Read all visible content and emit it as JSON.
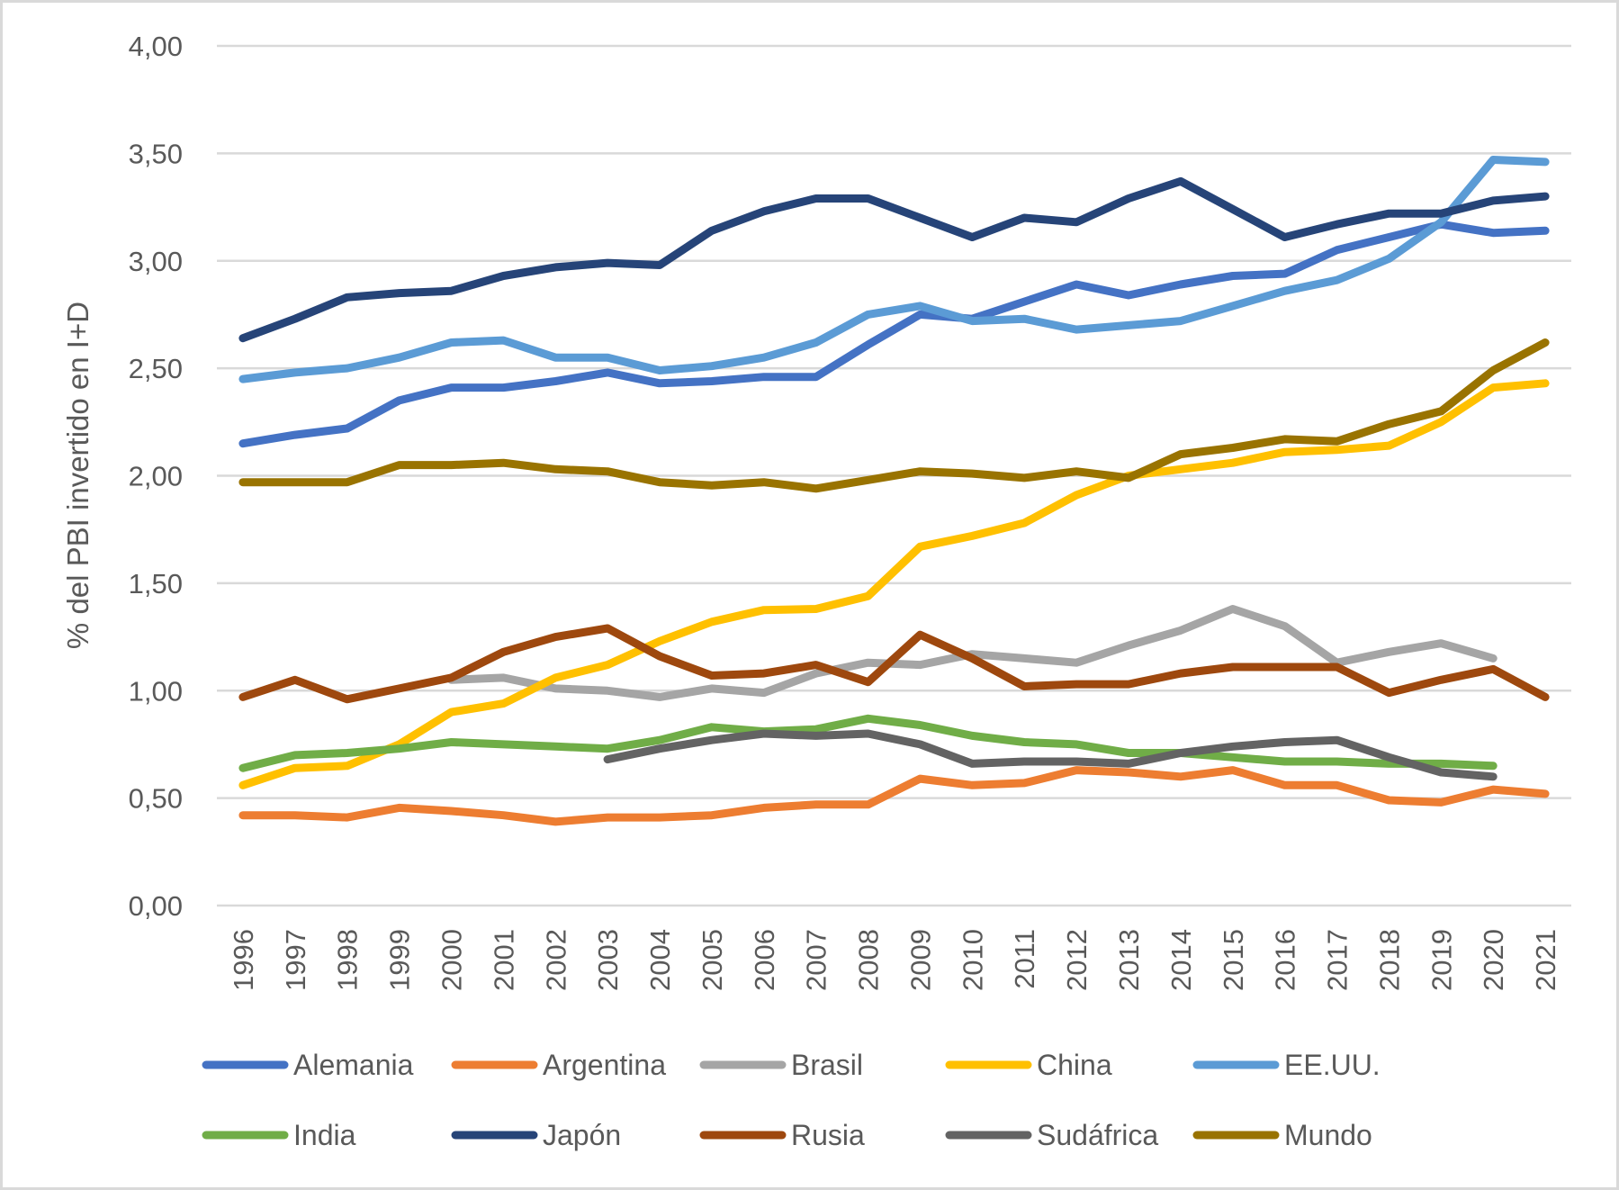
{
  "chart_data": {
    "type": "line",
    "title": "",
    "xlabel": "",
    "ylabel": "% del PBI invertido en I+D",
    "ylim": [
      0,
      4
    ],
    "y_ticks": [
      "0,00",
      "0,50",
      "1,00",
      "1,50",
      "2,00",
      "2,50",
      "3,00",
      "3,50",
      "4,00"
    ],
    "y_tick_values": [
      0,
      0.5,
      1,
      1.5,
      2,
      2.5,
      3,
      3.5,
      4
    ],
    "grid": true,
    "legend_position": "bottom",
    "categories": [
      "1996",
      "1997",
      "1998",
      "1999",
      "2000",
      "2001",
      "2002",
      "2003",
      "2004",
      "2005",
      "2006",
      "2007",
      "2008",
      "2009",
      "2010",
      "2011",
      "2012",
      "2013",
      "2014",
      "2015",
      "2016",
      "2017",
      "2018",
      "2019",
      "2020",
      "2021"
    ],
    "series": [
      {
        "name": "Alemania",
        "color": "#4472c4",
        "values": [
          2.15,
          2.19,
          2.22,
          2.35,
          2.41,
          2.41,
          2.44,
          2.48,
          2.43,
          2.44,
          2.46,
          2.46,
          2.61,
          2.75,
          2.73,
          2.81,
          2.89,
          2.84,
          2.89,
          2.93,
          2.94,
          3.05,
          3.11,
          3.17,
          3.13,
          3.14
        ]
      },
      {
        "name": "Argentina",
        "color": "#ed7d31",
        "values": [
          0.42,
          0.42,
          0.41,
          0.455,
          0.44,
          0.42,
          0.39,
          0.41,
          0.41,
          0.42,
          0.455,
          0.47,
          0.47,
          0.59,
          0.56,
          0.57,
          0.63,
          0.62,
          0.6,
          0.63,
          0.56,
          0.56,
          0.49,
          0.48,
          0.54,
          0.52
        ]
      },
      {
        "name": "Brasil",
        "color": "#a5a5a5",
        "values": [
          null,
          null,
          null,
          null,
          1.05,
          1.06,
          1.01,
          1.0,
          0.97,
          1.01,
          0.99,
          1.08,
          1.13,
          1.12,
          1.17,
          1.15,
          1.13,
          1.21,
          1.28,
          1.38,
          1.3,
          1.13,
          1.18,
          1.22,
          1.15,
          null
        ]
      },
      {
        "name": "China",
        "color": "#ffc000",
        "values": [
          0.56,
          0.64,
          0.65,
          0.75,
          0.9,
          0.94,
          1.06,
          1.12,
          1.23,
          1.32,
          1.375,
          1.38,
          1.44,
          1.67,
          1.72,
          1.78,
          1.91,
          2.0,
          2.03,
          2.06,
          2.11,
          2.12,
          2.14,
          2.25,
          2.41,
          2.43
        ]
      },
      {
        "name": "EE.UU.",
        "color": "#5b9bd5",
        "values": [
          2.45,
          2.48,
          2.5,
          2.55,
          2.62,
          2.63,
          2.55,
          2.55,
          2.49,
          2.51,
          2.55,
          2.62,
          2.75,
          2.79,
          2.72,
          2.73,
          2.68,
          2.7,
          2.72,
          2.79,
          2.86,
          2.91,
          3.01,
          3.18,
          3.47,
          3.46
        ]
      },
      {
        "name": "India",
        "color": "#70ad47",
        "values": [
          0.64,
          0.7,
          0.71,
          0.73,
          0.76,
          0.75,
          0.74,
          0.73,
          0.77,
          0.83,
          0.81,
          0.82,
          0.87,
          0.84,
          0.79,
          0.76,
          0.75,
          0.71,
          0.71,
          0.69,
          0.67,
          0.67,
          0.66,
          0.66,
          0.65,
          null
        ]
      },
      {
        "name": "Japón",
        "color": "#264478",
        "values": [
          2.64,
          2.73,
          2.83,
          2.85,
          2.86,
          2.93,
          2.97,
          2.99,
          2.98,
          3.14,
          3.23,
          3.29,
          3.29,
          3.2,
          3.11,
          3.2,
          3.18,
          3.29,
          3.37,
          3.24,
          3.11,
          3.17,
          3.22,
          3.22,
          3.28,
          3.3
        ]
      },
      {
        "name": "Rusia",
        "color": "#9e480e",
        "values": [
          0.97,
          1.05,
          0.96,
          1.01,
          1.06,
          1.18,
          1.25,
          1.29,
          1.16,
          1.07,
          1.08,
          1.12,
          1.04,
          1.26,
          1.15,
          1.02,
          1.03,
          1.03,
          1.08,
          1.11,
          1.11,
          1.11,
          0.99,
          1.05,
          1.1,
          0.97
        ]
      },
      {
        "name": "Sudáfrica",
        "color": "#636363",
        "values": [
          null,
          null,
          null,
          null,
          null,
          null,
          null,
          0.68,
          0.73,
          0.77,
          0.8,
          0.79,
          0.8,
          0.75,
          0.66,
          0.67,
          0.67,
          0.66,
          0.71,
          0.74,
          0.76,
          0.77,
          0.69,
          0.62,
          0.6,
          null
        ]
      },
      {
        "name": "Mundo",
        "color": "#997300",
        "values": [
          1.97,
          1.97,
          1.97,
          2.05,
          2.05,
          2.06,
          2.03,
          2.02,
          1.97,
          1.955,
          1.97,
          1.94,
          1.98,
          2.02,
          2.01,
          1.99,
          2.02,
          1.99,
          2.1,
          2.13,
          2.17,
          2.16,
          2.24,
          2.3,
          2.49,
          2.62
        ]
      }
    ]
  }
}
